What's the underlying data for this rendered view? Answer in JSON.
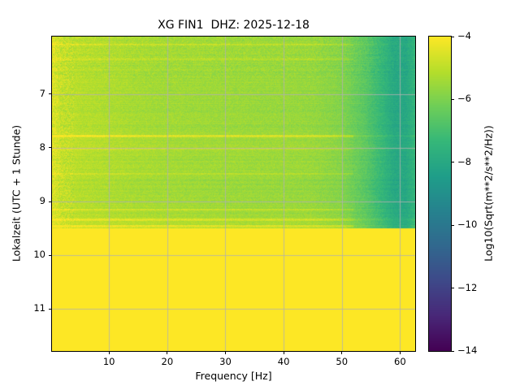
{
  "chart_data": {
    "type": "heatmap",
    "title": "XG FIN1  DHZ: 2025-12-18",
    "xlabel": "Frequency [Hz]",
    "ylabel": "Lokalzeit (UTC + 1 Stunde)",
    "x_range": [
      0.2,
      62.6
    ],
    "y_range": [
      5.93,
      11.78
    ],
    "x_ticks": [
      10,
      20,
      30,
      40,
      50,
      60
    ],
    "y_ticks": [
      7,
      8,
      9,
      10,
      11
    ],
    "grid": true,
    "grid_color": "#b0b0b0",
    "colormap": "viridis",
    "colormap_stops": [
      "#440154",
      "#482878",
      "#3e4989",
      "#31688e",
      "#26828e",
      "#1f9e89",
      "#35b779",
      "#6ece58",
      "#b5de2b",
      "#fde725"
    ],
    "colorbar": {
      "label": "Log10(Sqrt(m**2/s**2/Hz))",
      "ticks": [
        -4,
        -6,
        -8,
        -10,
        -12,
        -14
      ],
      "range": [
        -14,
        -4
      ]
    },
    "freq_bins": [
      0.3,
      2,
      5,
      10,
      15,
      20,
      25,
      30,
      35,
      40,
      45,
      50,
      54,
      57,
      59,
      61,
      62.6
    ],
    "time_bins": [
      5.95,
      6.3,
      6.7,
      7.1,
      7.5,
      7.9,
      8.3,
      8.7,
      9.1,
      9.48
    ],
    "values": [
      [
        -4.4,
        -4.85,
        -5.05,
        -5.15,
        -5.3,
        -5.35,
        -5.4,
        -5.45,
        -5.45,
        -5.5,
        -5.55,
        -5.8,
        -6.5,
        -7.3,
        -7.9,
        -8.0,
        -7.4
      ],
      [
        -4.45,
        -4.9,
        -5.05,
        -5.2,
        -5.3,
        -5.4,
        -5.4,
        -5.45,
        -5.5,
        -5.5,
        -5.55,
        -5.85,
        -6.55,
        -7.35,
        -7.95,
        -8.0,
        -7.45
      ],
      [
        -4.5,
        -4.9,
        -5.1,
        -5.2,
        -5.35,
        -5.4,
        -5.45,
        -5.5,
        -5.5,
        -5.55,
        -5.6,
        -5.85,
        -6.6,
        -7.4,
        -8.0,
        -8.0,
        -7.4
      ],
      [
        -4.5,
        -4.95,
        -5.1,
        -5.25,
        -5.35,
        -5.45,
        -5.45,
        -5.5,
        -5.55,
        -5.55,
        -5.6,
        -5.9,
        -6.6,
        -7.4,
        -8.0,
        -8.05,
        -7.45
      ],
      [
        -4.5,
        -4.9,
        -5.1,
        -5.2,
        -5.35,
        -5.4,
        -5.45,
        -5.5,
        -5.5,
        -5.55,
        -5.6,
        -5.9,
        -6.6,
        -7.4,
        -8.0,
        -8.0,
        -7.4
      ],
      [
        -4.45,
        -4.85,
        -5.0,
        -5.15,
        -5.25,
        -5.35,
        -5.4,
        -5.4,
        -5.45,
        -5.45,
        -5.5,
        -5.8,
        -6.5,
        -7.3,
        -7.9,
        -7.95,
        -7.35
      ],
      [
        -4.5,
        -4.9,
        -5.1,
        -5.2,
        -5.3,
        -5.4,
        -5.45,
        -5.45,
        -5.5,
        -5.5,
        -5.55,
        -5.85,
        -6.55,
        -7.35,
        -7.95,
        -8.0,
        -7.4
      ],
      [
        -4.55,
        -4.95,
        -5.15,
        -5.25,
        -5.4,
        -5.45,
        -5.5,
        -5.55,
        -5.55,
        -5.6,
        -5.65,
        -5.9,
        -6.65,
        -7.45,
        -8.05,
        -8.05,
        -7.45
      ],
      [
        -4.5,
        -4.9,
        -5.1,
        -5.2,
        -5.3,
        -5.35,
        -5.4,
        -5.45,
        -5.5,
        -5.5,
        -5.55,
        -5.85,
        -6.55,
        -7.35,
        -7.95,
        -8.0,
        -7.4
      ],
      [
        -4.35,
        -4.7,
        -4.9,
        -5.0,
        -5.1,
        -5.15,
        -5.2,
        -5.25,
        -5.3,
        -5.3,
        -5.35,
        -5.6,
        -6.3,
        -7.1,
        -7.7,
        -7.8,
        -7.2
      ]
    ],
    "saturated_after_time": 9.5,
    "saturated_value": -4,
    "streaks": [
      {
        "time": 6.08,
        "boost": 0.55
      },
      {
        "time": 6.35,
        "boost": 0.45
      },
      {
        "time": 7.78,
        "boost": 0.85
      },
      {
        "time": 8.02,
        "boost": 0.55
      },
      {
        "time": 8.48,
        "boost": 0.5
      },
      {
        "time": 9.15,
        "boost": 0.6
      },
      {
        "time": 9.34,
        "boost": 0.65
      },
      {
        "time": 9.46,
        "boost": 0.8
      }
    ],
    "noise": {
      "pixel": 0.28,
      "row": 0.14,
      "low_freq_extra": 0.25,
      "early_extra": 0.08,
      "seed": 7
    }
  }
}
